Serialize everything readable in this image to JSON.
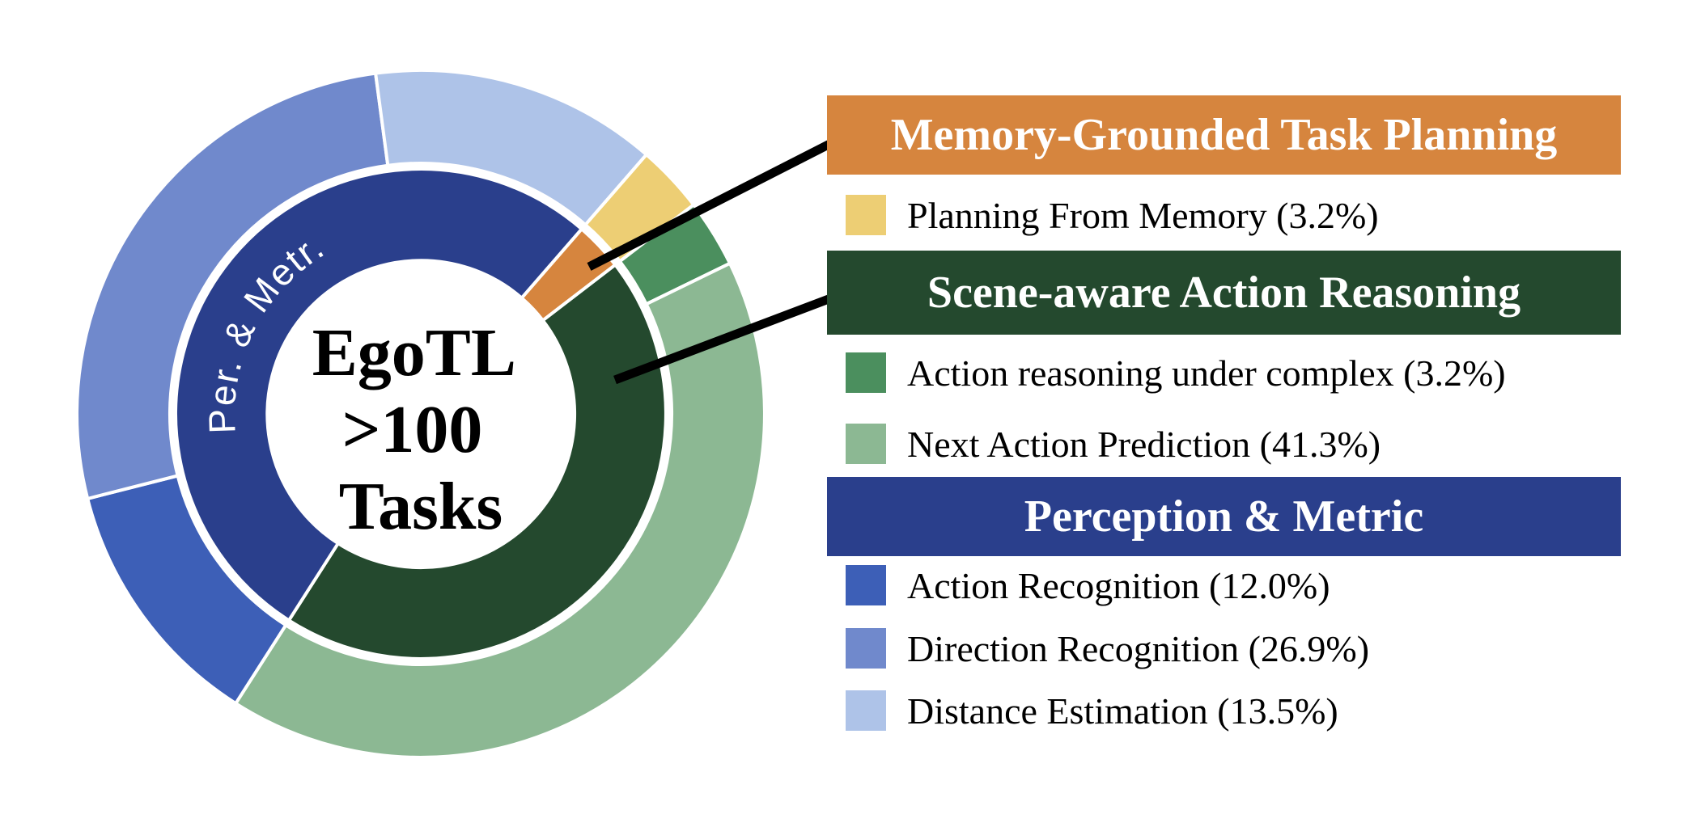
{
  "chart_data": {
    "type": "donut",
    "center": {
      "lines": [
        "EgoTL",
        ">100",
        "Tasks"
      ]
    },
    "inner_ring_label": "Per. & Metr.",
    "start_angle_deg": 41,
    "legend_position": "right",
    "groups": [
      {
        "name": "Memory-Grounded Task Planning",
        "color": "#D6853E",
        "items": [
          {
            "label": "Planning From Memory",
            "pct": 3.2,
            "color": "#EDCE74",
            "display": "Planning From Memory (3.2%)"
          }
        ]
      },
      {
        "name": "Scene-aware Action Reasoning",
        "color": "#24492E",
        "items": [
          {
            "label": "Action reasoning under complex",
            "pct": 3.2,
            "color": "#4B8F5E",
            "display": "Action reasoning under complex (3.2%)"
          },
          {
            "label": "Next Action Prediction",
            "pct": 41.3,
            "color": "#8CB893",
            "display": "Next Action Prediction (41.3%)"
          }
        ]
      },
      {
        "name": "Perception & Metric",
        "color": "#2A3F8C",
        "items": [
          {
            "label": "Action Recognition",
            "pct": 12.0,
            "color": "#3D5FB7",
            "display": "Action Recognition (12.0%)"
          },
          {
            "label": "Direction Recognition",
            "pct": 26.9,
            "color": "#7089CC",
            "display": "Direction Recognition (26.9%)"
          },
          {
            "label": "Distance Estimation",
            "pct": 13.5,
            "color": "#AEC3E8",
            "display": "Distance Estimation (13.5%)"
          }
        ]
      }
    ]
  }
}
